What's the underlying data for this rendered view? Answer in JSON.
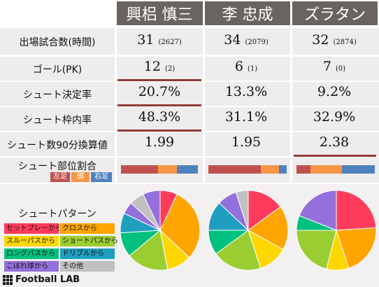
{
  "players": [
    {
      "name": "興梠 慎三",
      "matches": "31",
      "minutes": "(2627)",
      "goals": "12",
      "pk": "(2)",
      "shot_rate": "20.7%",
      "on_target": "48.3%",
      "shots90": "1.99",
      "part_bar": [
        0.48,
        0.25,
        0.27
      ],
      "pie": [
        0.07,
        0.3,
        0.1,
        0.17,
        0.1,
        0.08,
        0.05,
        0.06,
        0.07
      ]
    },
    {
      "name": "李 忠成",
      "matches": "34",
      "minutes": "(2079)",
      "goals": "6",
      "pk": "(1)",
      "shot_rate": "13.3%",
      "on_target": "31.1%",
      "shots90": "1.95",
      "part_bar": [
        0.67,
        0.23,
        0.1
      ],
      "pie": [
        0.15,
        0.18,
        0.12,
        0.2,
        0.1,
        0.12,
        0.08,
        0.05
      ]
    },
    {
      "name": "ズラタン",
      "matches": "32",
      "minutes": "(2874)",
      "goals": "7",
      "pk": "(0)",
      "shot_rate": "9.2%",
      "on_target": "32.9%",
      "shots90": "2.38",
      "part_bar": [
        0.18,
        0.4,
        0.42
      ],
      "pie": [
        0.24,
        0.21,
        0.09,
        0.21,
        0.06,
        0.19
      ]
    }
  ],
  "labels": {
    "matches": "出場試合数(時間)",
    "goals": "ゴール(PK)",
    "shot_rate": "シュート決定率",
    "on_target": "シュート枠内率",
    "shots90": "シュート数90分換算値",
    "parts": "シュート部位割合",
    "patterns": "シュートパターン"
  },
  "part_tags": [
    "左足",
    "頭",
    "右足"
  ],
  "part_colors": [
    "#c0504d",
    "#f79646",
    "#4f81bd"
  ],
  "legend": [
    {
      "text": "セットプレーから",
      "color": "#ff3b5c"
    },
    {
      "text": "クロスから",
      "color": "#ffa500"
    },
    {
      "text": "スルーパスから",
      "color": "#ffd700"
    },
    {
      "text": "ショートパスから",
      "color": "#9acd32"
    },
    {
      "text": "ロングパスから",
      "color": "#00c080"
    },
    {
      "text": "ドリブルから",
      "color": "#1f9fc0"
    },
    {
      "text": "こぼれ球から",
      "color": "#9370db"
    },
    {
      "text": "その他",
      "color": "#c0c0c0"
    }
  ],
  "pie_orders": [
    [
      "#ff3b5c",
      "#ffa500",
      "#ffd700",
      "#9acd32",
      "#00c080",
      "#1f9fc0",
      "#9370db",
      "#c0c0c0",
      "#9370db"
    ],
    [
      "#ff3b5c",
      "#ffa500",
      "#ffd700",
      "#9acd32",
      "#00c080",
      "#1f9fc0",
      "#9370db",
      "#c0c0c0"
    ],
    [
      "#ff3b5c",
      "#ffa500",
      "#ffd700",
      "#9acd32",
      "#00c080",
      "#9370db"
    ]
  ],
  "logo": "Football LAB"
}
